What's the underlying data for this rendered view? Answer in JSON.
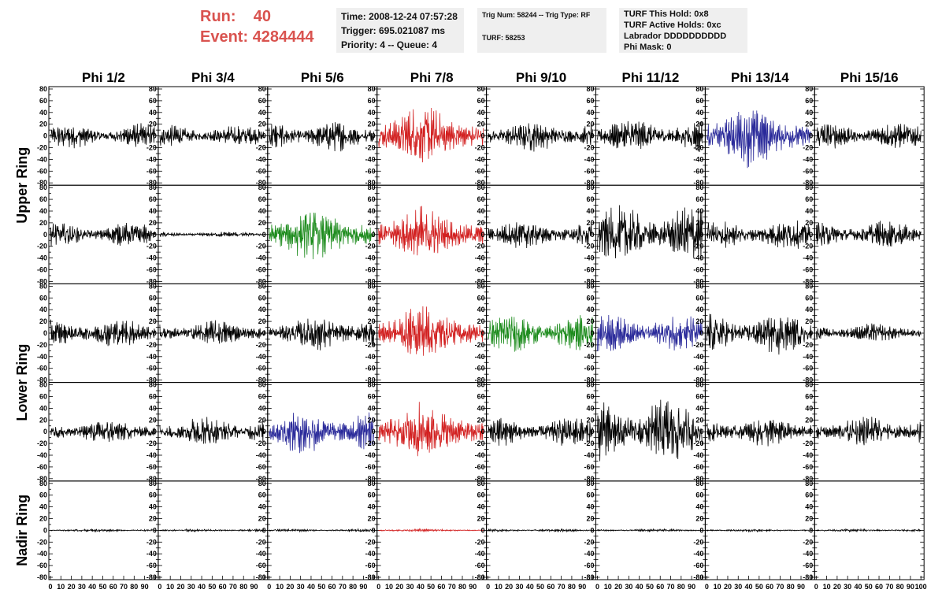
{
  "header": {
    "run_label": "Run:",
    "run_value": "40",
    "event_label": "Event:",
    "event_value": "4284444",
    "accent": "#d9534f"
  },
  "info_panels": {
    "time": "Time: 2008-12-24 07:57:28",
    "trigger": "Trigger: 695.021087 ms",
    "priority": "Priority: 4 -- Queue: 4",
    "trig_num": "Trig Num: 58244 -- Trig Type: RF",
    "turf": "TURF: 58253",
    "turf_this_hold": "TURF This Hold: 0x8",
    "turf_active_holds": "TURF Active Holds: 0xc",
    "labrador": "Labrador DDDDDDDDDD",
    "phi_mask": "Phi Mask: 0"
  },
  "chart_data": {
    "type": "line",
    "columns": [
      "Phi 1/2",
      "Phi 3/4",
      "Phi 5/6",
      "Phi 7/8",
      "Phi 9/10",
      "Phi 11/12",
      "Phi 13/14",
      "Phi 15/16"
    ],
    "row_labels": [
      "Upper Ring",
      "Lower Ring",
      "Nadir Ring"
    ],
    "y_ticks": [
      "80",
      "60",
      "40",
      "20",
      "0",
      "-20",
      "-40",
      "-60",
      "-80"
    ],
    "ylim": [
      -80,
      80
    ],
    "x_tick_labels": [
      "0",
      "10",
      "20",
      "30",
      "40",
      "50",
      "60",
      "70",
      "80",
      "90",
      "100"
    ],
    "xlim": [
      0,
      100
    ],
    "colors": {
      "black": "#000000",
      "red": "#d22020",
      "green": "#1e8c1e",
      "blue": "#2a2a9a"
    },
    "panels": [
      [
        {
          "a": 18,
          "c": "black"
        },
        {
          "a": 16,
          "c": "black"
        },
        {
          "a": 22,
          "c": "black"
        },
        {
          "a": 45,
          "c": "red"
        },
        {
          "a": 22,
          "c": "black"
        },
        {
          "a": 24,
          "c": "black"
        },
        {
          "a": 45,
          "c": "blue"
        },
        {
          "a": 20,
          "c": "black"
        }
      ],
      [
        {
          "a": 18,
          "c": "black"
        },
        {
          "a": 4,
          "c": "black"
        },
        {
          "a": 40,
          "c": "green"
        },
        {
          "a": 40,
          "c": "red"
        },
        {
          "a": 20,
          "c": "black"
        },
        {
          "a": 42,
          "c": "black"
        },
        {
          "a": 22,
          "c": "black"
        },
        {
          "a": 20,
          "c": "black"
        }
      ],
      [
        {
          "a": 22,
          "c": "black"
        },
        {
          "a": 18,
          "c": "black"
        },
        {
          "a": 26,
          "c": "black"
        },
        {
          "a": 40,
          "c": "red"
        },
        {
          "a": 28,
          "c": "green"
        },
        {
          "a": 28,
          "c": "blue"
        },
        {
          "a": 30,
          "c": "black"
        },
        {
          "a": 14,
          "c": "black"
        }
      ],
      [
        {
          "a": 18,
          "c": "black"
        },
        {
          "a": 22,
          "c": "black"
        },
        {
          "a": 32,
          "c": "blue"
        },
        {
          "a": 42,
          "c": "red"
        },
        {
          "a": 22,
          "c": "black"
        },
        {
          "a": 48,
          "c": "black"
        },
        {
          "a": 22,
          "c": "black"
        },
        {
          "a": 22,
          "c": "black"
        }
      ],
      [
        {
          "a": 2,
          "c": "black"
        },
        {
          "a": 2,
          "c": "black"
        },
        {
          "a": 2,
          "c": "black"
        },
        {
          "a": 2,
          "c": "red"
        },
        {
          "a": 2,
          "c": "black"
        },
        {
          "a": 2,
          "c": "black"
        },
        {
          "a": 2,
          "c": "black"
        },
        {
          "a": 2,
          "c": "black"
        }
      ]
    ]
  }
}
